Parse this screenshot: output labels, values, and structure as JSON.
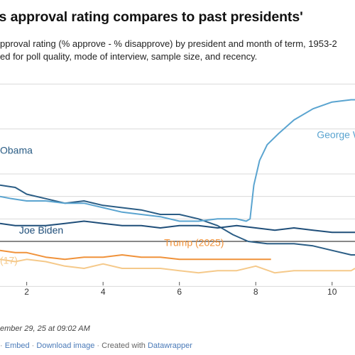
{
  "title": "'s approval rating compares to past presidents'",
  "subtitle_line1": "pproval rating (% approve - % disapprove) by president and month of term, 1953-2",
  "subtitle_line2": "ed for poll quality, mode of interview, sample size, and recency.",
  "notes": "ember 29, 25 at 09:02 AM",
  "footer": {
    "embed": "Embed",
    "download": "Download image",
    "created_with": "Created with",
    "datawrapper": "Datawrapper",
    "bullet": "·"
  },
  "colors": {
    "obama": "#2b5d85",
    "bush": "#5aa4d0",
    "biden": "#1f4e79",
    "trump2025": "#f0923a",
    "trump2017": "#f5c98a",
    "baseline": "#111111",
    "grid": "#d9d9d9"
  },
  "chart_data": {
    "type": "line",
    "xlim": [
      1.3,
      10.6
    ],
    "ylim": [
      -28,
      62
    ],
    "x_ticks": [
      "2",
      "4",
      "6",
      "8",
      "10"
    ],
    "series": [
      {
        "name": "George W.",
        "color": "#5aa4d0",
        "x": [
          1.3,
          1.6,
          2.0,
          2.5,
          3.0,
          3.5,
          4.0,
          4.5,
          5.0,
          5.5,
          6.0,
          6.5,
          7.0,
          7.5,
          7.75,
          7.85,
          7.95,
          8.1,
          8.3,
          8.6,
          9.0,
          9.5,
          10.0,
          10.5,
          10.6
        ],
        "y": [
          10,
          9,
          8,
          8,
          7,
          7,
          5,
          3,
          2,
          1,
          -1,
          -1,
          0,
          0,
          -1,
          0,
          15,
          26,
          33,
          38,
          44,
          49,
          52,
          53,
          53
        ]
      },
      {
        "name": "Obama",
        "color": "#2b5d85",
        "x": [
          1.3,
          1.7,
          2.0,
          2.5,
          3.0,
          3.5,
          4.0,
          4.5,
          5.0,
          5.5,
          6.0,
          6.5,
          7.0,
          7.4,
          7.8,
          8.3,
          9.0,
          9.5,
          10.0,
          10.5,
          10.6
        ],
        "y": [
          15,
          14,
          11,
          9,
          7,
          8,
          6,
          5,
          4,
          2,
          2,
          0,
          -3,
          -7,
          -10,
          -11,
          -11,
          -12,
          -14,
          -16,
          -16
        ]
      },
      {
        "name": "Joe Biden",
        "color": "#1f4e79",
        "x": [
          1.3,
          1.7,
          2.0,
          2.5,
          3.0,
          3.5,
          4.0,
          4.5,
          5.0,
          5.5,
          6.0,
          6.5,
          7.0,
          7.5,
          8.0,
          8.5,
          9.0,
          9.5,
          10.0,
          10.6
        ],
        "y": [
          -2,
          -3,
          -3,
          -3,
          -2,
          -1,
          -2,
          -3,
          -3,
          -4,
          -3,
          -3,
          -4,
          -3,
          -4,
          -5,
          -4,
          -5,
          -6,
          -6
        ]
      },
      {
        "name": "Trump (2025)",
        "color": "#f0923a",
        "x": [
          1.3,
          1.7,
          2.0,
          2.5,
          3.0,
          3.5,
          4.0,
          4.5,
          5.0,
          5.5,
          6.0,
          6.5,
          7.0,
          7.5,
          8.0,
          8.4
        ],
        "y": [
          -14,
          -15,
          -15,
          -17,
          -18,
          -17,
          -17,
          -16,
          -17,
          -17,
          -18,
          -18,
          -18,
          -18,
          -18,
          -18
        ]
      },
      {
        "name": "(17)",
        "color": "#f5c98a",
        "x": [
          1.3,
          1.7,
          2.0,
          2.5,
          3.0,
          3.5,
          4.0,
          4.5,
          5.0,
          5.5,
          6.0,
          6.5,
          7.0,
          7.5,
          8.0,
          8.5,
          9.0,
          9.5,
          10.0,
          10.5,
          10.6
        ],
        "y": [
          -18,
          -19,
          -18,
          -19,
          -21,
          -22,
          -20,
          -22,
          -22,
          -22,
          -23,
          -24,
          -23,
          -23,
          -21,
          -24,
          -23,
          -23,
          -23,
          -23,
          -22
        ]
      }
    ],
    "labels": [
      {
        "text": "George W.",
        "x": 9.6,
        "y": 36
      },
      {
        "text": "Obama",
        "x": 1.3,
        "y": 29
      },
      {
        "text": "Joe Biden",
        "x": 1.8,
        "y": -6.5
      },
      {
        "text": "Trump (2025)",
        "x": 5.6,
        "y": -12
      },
      {
        "text": "(17)",
        "x": 1.3,
        "y": -20
      }
    ]
  }
}
